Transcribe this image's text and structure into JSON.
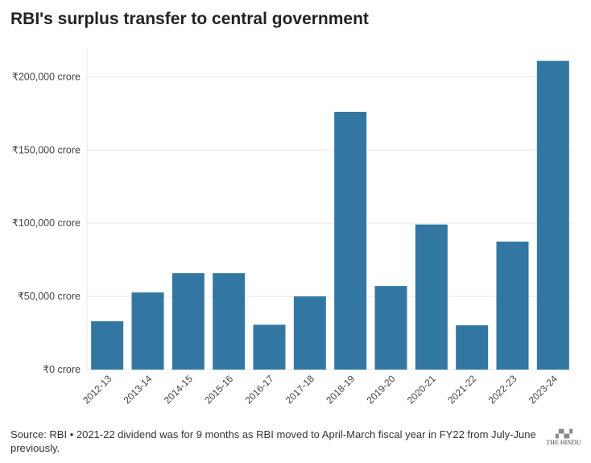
{
  "title": "RBI's surplus transfer to central government",
  "footer": "Source: RBI • 2021-22 dividend was for 9 months as RBI moved to April-March fiscal year in FY22 from July-June previously.",
  "logo_text": "THE HINDU",
  "chart_data": {
    "type": "bar",
    "title": "RBI's surplus transfer to central government",
    "categories": [
      "2012-13",
      "2013-14",
      "2014-15",
      "2015-16",
      "2016-17",
      "2017-18",
      "2018-19",
      "2019-20",
      "2020-21",
      "2021-22",
      "2022-23",
      "2023-24"
    ],
    "values": [
      33010,
      52679,
      65896,
      65876,
      30659,
      50000,
      176051,
      57128,
      99122,
      30307,
      87416,
      210874
    ],
    "ylim": [
      0,
      220000
    ],
    "yticks": [
      0,
      50000,
      100000,
      150000,
      200000
    ],
    "ytick_labels": [
      "₹0 crore",
      "₹50,000 crore",
      "₹100,000 crore",
      "₹150,000 crore",
      "₹200,000 crore"
    ],
    "xlabel": "",
    "ylabel": "",
    "grid": true,
    "bar_color": "#3277a1"
  }
}
